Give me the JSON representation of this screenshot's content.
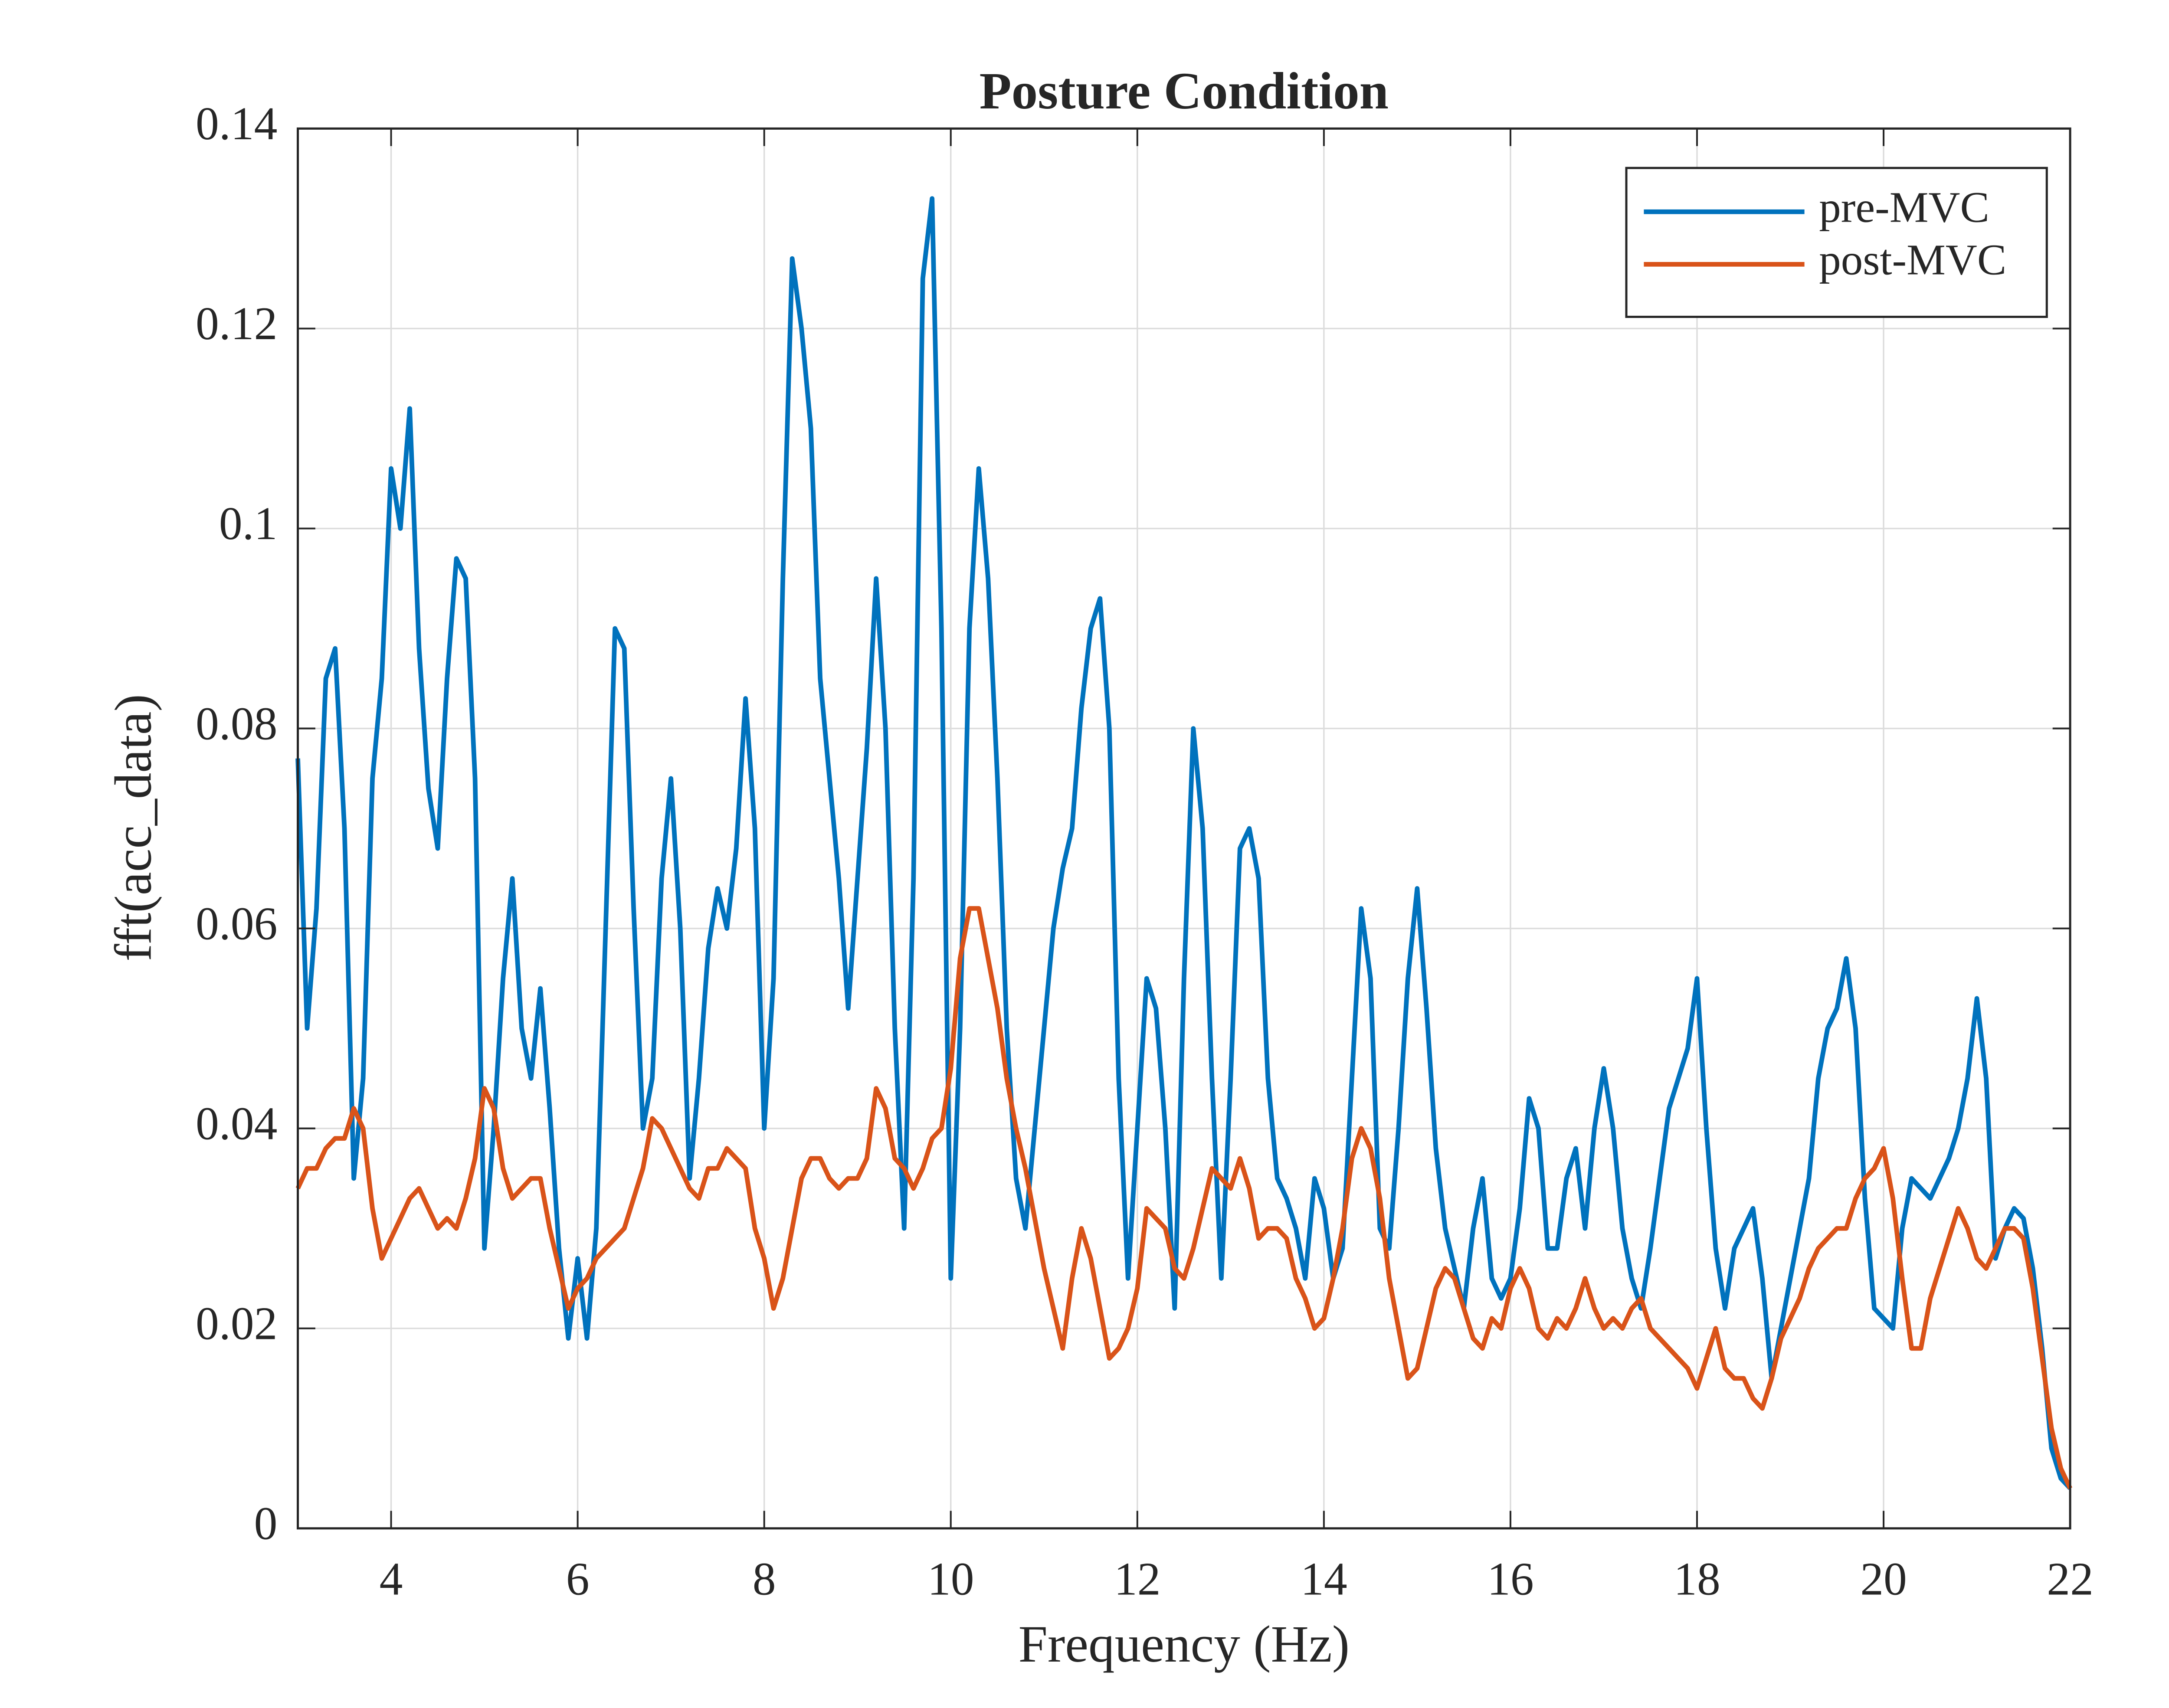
{
  "chart_data": {
    "type": "line",
    "title": "Posture Condition",
    "xlabel": "Frequency (Hz)",
    "ylabel": "fft(acc_data)",
    "xlim": [
      3,
      22
    ],
    "ylim": [
      0,
      0.14
    ],
    "xticks": [
      4,
      6,
      8,
      10,
      12,
      14,
      16,
      18,
      20,
      22
    ],
    "yticks": [
      0,
      0.02,
      0.04,
      0.06,
      0.08,
      0.1,
      0.12,
      0.14
    ],
    "grid": true,
    "legend": "upper right",
    "x": [
      3.0,
      3.1,
      3.2,
      3.3,
      3.4,
      3.5,
      3.6,
      3.7,
      3.8,
      3.9,
      4.0,
      4.1,
      4.2,
      4.3,
      4.4,
      4.5,
      4.6,
      4.7,
      4.8,
      4.9,
      5.0,
      5.1,
      5.2,
      5.3,
      5.4,
      5.5,
      5.6,
      5.7,
      5.8,
      5.9,
      6.0,
      6.1,
      6.2,
      6.3,
      6.4,
      6.5,
      6.6,
      6.7,
      6.8,
      6.9,
      7.0,
      7.1,
      7.2,
      7.3,
      7.4,
      7.5,
      7.6,
      7.7,
      7.8,
      7.9,
      8.0,
      8.1,
      8.2,
      8.3,
      8.4,
      8.5,
      8.6,
      8.7,
      8.8,
      8.9,
      9.0,
      9.1,
      9.2,
      9.3,
      9.4,
      9.5,
      9.6,
      9.7,
      9.8,
      9.9,
      10.0,
      10.1,
      10.2,
      10.3,
      10.4,
      10.5,
      10.6,
      10.7,
      10.8,
      10.9,
      11.0,
      11.1,
      11.2,
      11.3,
      11.4,
      11.5,
      11.6,
      11.7,
      11.8,
      11.9,
      12.0,
      12.1,
      12.2,
      12.3,
      12.4,
      12.5,
      12.6,
      12.7,
      12.8,
      12.9,
      13.0,
      13.1,
      13.2,
      13.3,
      13.4,
      13.5,
      13.6,
      13.7,
      13.8,
      13.9,
      14.0,
      14.1,
      14.2,
      14.3,
      14.4,
      14.5,
      14.6,
      14.7,
      14.8,
      14.9,
      15.0,
      15.1,
      15.2,
      15.3,
      15.4,
      15.5,
      15.6,
      15.7,
      15.8,
      15.9,
      16.0,
      16.1,
      16.2,
      16.3,
      16.4,
      16.5,
      16.6,
      16.7,
      16.8,
      16.9,
      17.0,
      17.1,
      17.2,
      17.3,
      17.4,
      17.5,
      17.6,
      17.7,
      17.8,
      17.9,
      18.0,
      18.1,
      18.2,
      18.3,
      18.4,
      18.5,
      18.6,
      18.7,
      18.8,
      18.9,
      19.0,
      19.1,
      19.2,
      19.3,
      19.4,
      19.5,
      19.6,
      19.7,
      19.8,
      19.9,
      20.0,
      20.1,
      20.2,
      20.3,
      20.4,
      20.5,
      20.6,
      20.7,
      20.8,
      20.9,
      21.0,
      21.1,
      21.2,
      21.3,
      21.4,
      21.5,
      21.6,
      21.7,
      21.8,
      21.9,
      22.0
    ],
    "series": [
      {
        "name": "pre-MVC",
        "color": "#0072BD",
        "values": [
          0.077,
          0.05,
          0.062,
          0.085,
          0.088,
          0.07,
          0.035,
          0.045,
          0.075,
          0.085,
          0.106,
          0.1,
          0.112,
          0.088,
          0.074,
          0.068,
          0.085,
          0.097,
          0.095,
          0.075,
          0.028,
          0.04,
          0.055,
          0.065,
          0.05,
          0.045,
          0.054,
          0.042,
          0.028,
          0.019,
          0.027,
          0.019,
          0.03,
          0.06,
          0.09,
          0.088,
          0.062,
          0.04,
          0.045,
          0.065,
          0.075,
          0.06,
          0.035,
          0.045,
          0.058,
          0.064,
          0.06,
          0.068,
          0.083,
          0.07,
          0.04,
          0.055,
          0.095,
          0.127,
          0.12,
          0.11,
          0.085,
          0.075,
          0.065,
          0.052,
          0.065,
          0.078,
          0.095,
          0.08,
          0.05,
          0.03,
          0.065,
          0.125,
          0.133,
          0.09,
          0.025,
          0.05,
          0.09,
          0.106,
          0.095,
          0.075,
          0.05,
          0.035,
          0.03,
          0.04,
          0.05,
          0.06,
          0.066,
          0.07,
          0.082,
          0.09,
          0.093,
          0.08,
          0.045,
          0.025,
          0.04,
          0.055,
          0.052,
          0.04,
          0.022,
          0.055,
          0.08,
          0.07,
          0.045,
          0.025,
          0.045,
          0.068,
          0.07,
          0.065,
          0.045,
          0.035,
          0.033,
          0.03,
          0.025,
          0.035,
          0.032,
          0.025,
          0.028,
          0.045,
          0.062,
          0.055,
          0.03,
          0.028,
          0.04,
          0.055,
          0.064,
          0.052,
          0.038,
          0.03,
          0.026,
          0.022,
          0.03,
          0.035,
          0.025,
          0.023,
          0.025,
          0.032,
          0.043,
          0.04,
          0.028,
          0.028,
          0.035,
          0.038,
          0.03,
          0.04,
          0.046,
          0.04,
          0.03,
          0.025,
          0.022,
          0.028,
          0.035,
          0.042,
          0.045,
          0.048,
          0.055,
          0.04,
          0.028,
          0.022,
          0.028,
          0.03,
          0.032,
          0.025,
          0.015,
          0.02,
          0.025,
          0.03,
          0.035,
          0.045,
          0.05,
          0.052,
          0.057,
          0.05,
          0.033,
          0.022,
          0.021,
          0.02,
          0.03,
          0.035,
          0.034,
          0.033,
          0.035,
          0.037,
          0.04,
          0.045,
          0.053,
          0.045,
          0.027,
          0.03,
          0.032,
          0.031,
          0.026,
          0.018,
          0.008,
          0.005,
          0.004
        ]
      },
      {
        "name": "post-MVC",
        "color": "#D95319",
        "values": [
          0.034,
          0.036,
          0.036,
          0.038,
          0.039,
          0.039,
          0.042,
          0.04,
          0.032,
          0.027,
          0.029,
          0.031,
          0.033,
          0.034,
          0.032,
          0.03,
          0.031,
          0.03,
          0.033,
          0.037,
          0.044,
          0.042,
          0.036,
          0.033,
          0.034,
          0.035,
          0.035,
          0.03,
          0.026,
          0.022,
          0.024,
          0.025,
          0.027,
          0.028,
          0.029,
          0.03,
          0.033,
          0.036,
          0.041,
          0.04,
          0.038,
          0.036,
          0.034,
          0.033,
          0.036,
          0.036,
          0.038,
          0.037,
          0.036,
          0.03,
          0.027,
          0.022,
          0.025,
          0.03,
          0.035,
          0.037,
          0.037,
          0.035,
          0.034,
          0.035,
          0.035,
          0.037,
          0.044,
          0.042,
          0.037,
          0.036,
          0.034,
          0.036,
          0.039,
          0.04,
          0.046,
          0.057,
          0.062,
          0.062,
          0.057,
          0.052,
          0.045,
          0.04,
          0.036,
          0.031,
          0.026,
          0.022,
          0.018,
          0.025,
          0.03,
          0.027,
          0.022,
          0.017,
          0.018,
          0.02,
          0.024,
          0.032,
          0.031,
          0.03,
          0.026,
          0.025,
          0.028,
          0.032,
          0.036,
          0.035,
          0.034,
          0.037,
          0.034,
          0.029,
          0.03,
          0.03,
          0.029,
          0.025,
          0.023,
          0.02,
          0.021,
          0.025,
          0.03,
          0.037,
          0.04,
          0.038,
          0.033,
          0.025,
          0.02,
          0.015,
          0.016,
          0.02,
          0.024,
          0.026,
          0.025,
          0.022,
          0.019,
          0.018,
          0.021,
          0.02,
          0.024,
          0.026,
          0.024,
          0.02,
          0.019,
          0.021,
          0.02,
          0.022,
          0.025,
          0.022,
          0.02,
          0.021,
          0.02,
          0.022,
          0.023,
          0.02,
          0.019,
          0.018,
          0.017,
          0.016,
          0.014,
          0.017,
          0.02,
          0.016,
          0.015,
          0.015,
          0.013,
          0.012,
          0.015,
          0.019,
          0.021,
          0.023,
          0.026,
          0.028,
          0.029,
          0.03,
          0.03,
          0.033,
          0.035,
          0.036,
          0.038,
          0.033,
          0.025,
          0.018,
          0.018,
          0.023,
          0.026,
          0.029,
          0.032,
          0.03,
          0.027,
          0.026,
          0.028,
          0.03,
          0.03,
          0.029,
          0.024,
          0.017,
          0.01,
          0.006,
          0.004
        ]
      }
    ]
  }
}
